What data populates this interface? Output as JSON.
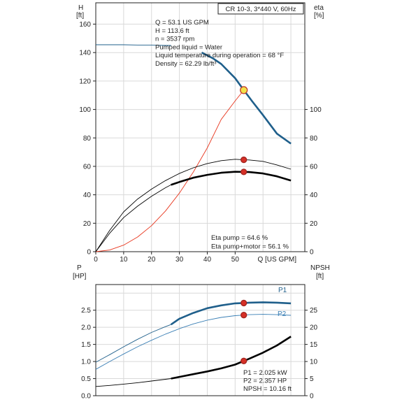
{
  "chart_data": [
    {
      "type": "line",
      "title": "CR 10-3, 3*440 V, 60Hz",
      "left_axis": {
        "label": [
          "H",
          "[ft]"
        ],
        "range": [
          0,
          175
        ],
        "ticks": [
          "0",
          "20",
          "40",
          "60",
          "80",
          "100",
          "120",
          "140",
          "160"
        ]
      },
      "right_axis": {
        "label": [
          "eta",
          "[%]"
        ],
        "range": [
          0,
          175
        ],
        "ticks": [
          "0",
          "20",
          "40",
          "60",
          "80",
          "100"
        ]
      },
      "x_axis": {
        "label": "Q [US GPM]",
        "range": [
          0,
          75
        ],
        "ticks": [
          "0",
          "10",
          "20",
          "30",
          "40",
          "50"
        ]
      },
      "grid": true,
      "operating_info": [
        "Q = 53.1 US GPM",
        "H = 113.6 ft",
        "n = 3537 rpm",
        "Pumped liquid = Water",
        "Liquid temperature during operation = 68 °F",
        "Density = 62.29 lb/ft³"
      ],
      "efficiency_info": [
        "Eta pump = 64.6 %",
        "Eta pump+motor = 56.1 %"
      ],
      "series": [
        {
          "color": "#1f5f8b",
          "style": "thin",
          "x": [
            0,
            5,
            10,
            15,
            20,
            25,
            27
          ],
          "y": [
            145.5,
            145.5,
            145.5,
            145.3,
            145.2,
            145,
            145
          ]
        },
        {
          "color": "#1f5f8b",
          "style": "thick",
          "x": [
            38,
            42,
            45,
            50,
            53.1,
            56,
            60,
            65,
            70
          ],
          "y": [
            140,
            136,
            132,
            122,
            113.6,
            106,
            96,
            83,
            76
          ]
        },
        {
          "color": "#e8361e",
          "style": "thin",
          "x": [
            0,
            5,
            10,
            15,
            20,
            25,
            30,
            35,
            40,
            45,
            50,
            53.1
          ],
          "y": [
            0,
            1.2,
            4.6,
            10.3,
            18.3,
            28.6,
            41.2,
            56,
            73,
            93,
            106,
            113.6
          ]
        },
        {
          "color": "#000000",
          "style": "thin",
          "x": [
            0,
            5,
            10,
            15,
            20,
            25,
            30,
            35,
            40,
            45,
            50,
            53.1,
            55,
            60,
            65,
            70
          ],
          "y": [
            0,
            15,
            28,
            37,
            44,
            50,
            55,
            59,
            62,
            64,
            65,
            64.6,
            64.5,
            63.5,
            61,
            58
          ]
        },
        {
          "color": "#000000",
          "style": "thick",
          "x": [
            27,
            30,
            35,
            40,
            45,
            50,
            53.1,
            55,
            60,
            65,
            70
          ],
          "y": [
            47,
            49,
            52,
            54,
            55.5,
            56.2,
            56.1,
            56,
            55,
            53,
            50
          ]
        },
        {
          "color": "#000000",
          "style": "thin",
          "x": [
            0,
            5,
            10,
            15,
            20,
            25,
            27
          ],
          "y": [
            0,
            13,
            24,
            32,
            39,
            45,
            47
          ]
        }
      ],
      "markers": [
        {
          "x": 53.1,
          "y": 113.6,
          "color": "#f2e24a",
          "stroke": "#c0392b"
        },
        {
          "x": 53.1,
          "y": 64.6,
          "color": "#d63027",
          "stroke": "#a12520"
        },
        {
          "x": 53.1,
          "y": 56.1,
          "color": "#d63027",
          "stroke": "#a12520"
        }
      ]
    },
    {
      "type": "line",
      "left_axis": {
        "label": [
          "P",
          "[HP]"
        ],
        "range": [
          0,
          3.25
        ],
        "ticks": [
          "0.0",
          "0.5",
          "1.0",
          "1.5",
          "2.0",
          "2.5"
        ]
      },
      "right_axis": {
        "label": [
          "NPSH",
          "[ft]"
        ],
        "range": [
          0,
          32.5
        ],
        "ticks": [
          "0",
          "5",
          "10",
          "15",
          "20",
          "25"
        ]
      },
      "x_axis": {
        "range": [
          0,
          75
        ]
      },
      "grid": true,
      "series_labels": [
        "P1",
        "P2"
      ],
      "info": [
        "P1 = 2.025 kW",
        "P2 = 2.357 HP",
        "NPSH = 10.16 ft"
      ],
      "series": [
        {
          "name": "P1",
          "color": "#1f5f8b",
          "style": "thin",
          "x": [
            0,
            5,
            10,
            15,
            20,
            25,
            27
          ],
          "y": [
            0.98,
            1.2,
            1.43,
            1.65,
            1.85,
            2.02,
            2.08
          ]
        },
        {
          "name": "P1",
          "color": "#1f5f8b",
          "style": "thick",
          "x": [
            27,
            30,
            35,
            40,
            45,
            50,
            53.1,
            55,
            60,
            65,
            70
          ],
          "y": [
            2.08,
            2.25,
            2.42,
            2.56,
            2.64,
            2.7,
            2.71,
            2.72,
            2.73,
            2.72,
            2.7
          ]
        },
        {
          "name": "P2",
          "color": "#3a7fb5",
          "style": "thin",
          "x": [
            0,
            5,
            10,
            15,
            20,
            25,
            30,
            35,
            40,
            45,
            50,
            53.1,
            55,
            60,
            65,
            70
          ],
          "y": [
            0.77,
            1.0,
            1.22,
            1.43,
            1.62,
            1.8,
            1.96,
            2.1,
            2.21,
            2.29,
            2.34,
            2.357,
            2.37,
            2.38,
            2.37,
            2.35
          ]
        },
        {
          "name": "NPSH",
          "color": "#000000",
          "style": "thin",
          "x": [
            0,
            5,
            10,
            15,
            20,
            25,
            27
          ],
          "y": [
            2.7,
            3.0,
            3.4,
            3.8,
            4.3,
            4.8,
            5.0
          ]
        },
        {
          "name": "NPSH",
          "color": "#000000",
          "style": "thick",
          "x": [
            27,
            30,
            35,
            40,
            45,
            50,
            53.1,
            55,
            60,
            65,
            70
          ],
          "y": [
            5.0,
            5.5,
            6.3,
            7.1,
            8.0,
            9.1,
            10.16,
            10.8,
            12.6,
            14.7,
            17.3
          ]
        }
      ],
      "markers": [
        {
          "x": 53.1,
          "y": 2.71,
          "axis": "left",
          "color": "#d63027",
          "stroke": "#a12520"
        },
        {
          "x": 53.1,
          "y": 2.357,
          "axis": "left",
          "color": "#d63027",
          "stroke": "#a12520"
        },
        {
          "x": 53.1,
          "y": 10.16,
          "axis": "right",
          "color": "#d63027",
          "stroke": "#a12520"
        }
      ]
    }
  ]
}
